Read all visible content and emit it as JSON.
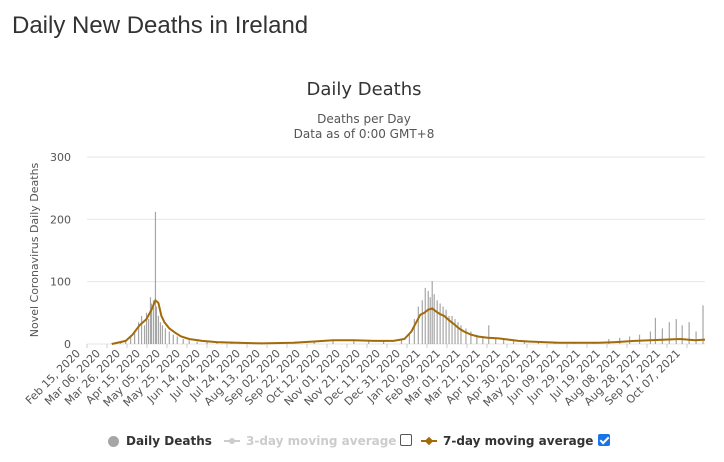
{
  "page": {
    "title": "Daily New Deaths in Ireland"
  },
  "colors": {
    "bars": "#a6a6a6",
    "avg7": "#a36a0a",
    "avg3_disabled": "#cccccc",
    "grid": "#e6e6e6",
    "checkbox": "#1a73e8"
  },
  "chart_data": {
    "type": "bar",
    "title": "Daily Deaths",
    "subtitle_lines": [
      "Deaths per Day",
      "Data as of 0:00 GMT+8"
    ],
    "ylabel": "Novel Coronavirus Daily Deaths",
    "ylim": [
      0,
      300
    ],
    "yticks": [
      "0",
      "100",
      "200",
      "300"
    ],
    "grid": true,
    "legend_position": "bottom",
    "x_start": "2020-02-15",
    "x_end": "2021-10-30",
    "xtick_labels": [
      "Feb 15, 2020",
      "Mar 06, 2020",
      "Mar 26, 2020",
      "Apr 15, 2020",
      "May 05, 2020",
      "May 25, 2020",
      "Jun 14, 2020",
      "Jul 04, 2020",
      "Jul 24, 2020",
      "Aug 13, 2020",
      "Sep 02, 2020",
      "Sep 22, 2020",
      "Oct 12, 2020",
      "Nov 01, 2020",
      "Nov 21, 2020",
      "Dec 11, 2020",
      "Dec 31, 2020",
      "Jan 20, 2021",
      "Feb 09, 2021",
      "Mar 01, 2021",
      "Mar 21, 2021",
      "Apr 10, 2021",
      "Apr 30, 2021",
      "May 20, 2021",
      "Jun 09, 2021",
      "Jun 29, 2021",
      "Jul 19, 2021",
      "Aug 08, 2021",
      "Aug 28, 2021",
      "Sep 17, 2021",
      "Oct 07, 2021"
    ],
    "series": [
      {
        "name": "Daily Deaths",
        "kind": "bar",
        "visible": true,
        "points": [
          [
            "2020-03-11",
            1
          ],
          [
            "2020-03-20",
            3
          ],
          [
            "2020-03-25",
            6
          ],
          [
            "2020-03-30",
            12
          ],
          [
            "2020-04-03",
            20
          ],
          [
            "2020-04-07",
            35
          ],
          [
            "2020-04-10",
            45
          ],
          [
            "2020-04-13",
            30
          ],
          [
            "2020-04-15",
            50
          ],
          [
            "2020-04-17",
            40
          ],
          [
            "2020-04-19",
            75
          ],
          [
            "2020-04-20",
            65
          ],
          [
            "2020-04-22",
            70
          ],
          [
            "2020-04-24",
            212
          ],
          [
            "2020-04-25",
            60
          ],
          [
            "2020-04-27",
            45
          ],
          [
            "2020-04-29",
            35
          ],
          [
            "2020-05-01",
            30
          ],
          [
            "2020-05-04",
            25
          ],
          [
            "2020-05-08",
            20
          ],
          [
            "2020-05-12",
            15
          ],
          [
            "2020-05-16",
            12
          ],
          [
            "2020-05-22",
            8
          ],
          [
            "2020-05-28",
            6
          ],
          [
            "2020-06-05",
            4
          ],
          [
            "2020-06-15",
            3
          ],
          [
            "2020-06-25",
            2
          ],
          [
            "2020-07-10",
            2
          ],
          [
            "2020-08-01",
            1
          ],
          [
            "2020-09-01",
            2
          ],
          [
            "2020-10-01",
            5
          ],
          [
            "2020-10-20",
            6
          ],
          [
            "2020-11-10",
            7
          ],
          [
            "2020-11-25",
            6
          ],
          [
            "2020-12-10",
            5
          ],
          [
            "2020-12-28",
            8
          ],
          [
            "2021-01-05",
            15
          ],
          [
            "2021-01-10",
            40
          ],
          [
            "2021-01-14",
            60
          ],
          [
            "2021-01-18",
            70
          ],
          [
            "2021-01-21",
            90
          ],
          [
            "2021-01-24",
            85
          ],
          [
            "2021-01-26",
            75
          ],
          [
            "2021-01-28",
            101
          ],
          [
            "2021-01-30",
            80
          ],
          [
            "2021-02-02",
            70
          ],
          [
            "2021-02-05",
            65
          ],
          [
            "2021-02-08",
            60
          ],
          [
            "2021-02-11",
            55
          ],
          [
            "2021-02-14",
            45
          ],
          [
            "2021-02-17",
            45
          ],
          [
            "2021-02-20",
            40
          ],
          [
            "2021-02-23",
            35
          ],
          [
            "2021-02-26",
            30
          ],
          [
            "2021-03-03",
            25
          ],
          [
            "2021-03-08",
            20
          ],
          [
            "2021-03-14",
            15
          ],
          [
            "2021-03-20",
            12
          ],
          [
            "2021-03-26",
            30
          ],
          [
            "2021-04-02",
            10
          ],
          [
            "2021-04-10",
            8
          ],
          [
            "2021-04-20",
            6
          ],
          [
            "2021-05-01",
            4
          ],
          [
            "2021-05-15",
            3
          ],
          [
            "2021-06-01",
            2
          ],
          [
            "2021-06-20",
            2
          ],
          [
            "2021-07-10",
            3
          ],
          [
            "2021-07-25",
            8
          ],
          [
            "2021-08-05",
            10
          ],
          [
            "2021-08-15",
            12
          ],
          [
            "2021-08-25",
            15
          ],
          [
            "2021-09-05",
            20
          ],
          [
            "2021-09-10",
            42
          ],
          [
            "2021-09-17",
            25
          ],
          [
            "2021-09-24",
            35
          ],
          [
            "2021-10-01",
            40
          ],
          [
            "2021-10-07",
            30
          ],
          [
            "2021-10-14",
            35
          ],
          [
            "2021-10-21",
            20
          ],
          [
            "2021-10-28",
            62
          ]
        ]
      },
      {
        "name": "3-day moving average",
        "kind": "line",
        "visible": false,
        "points": []
      },
      {
        "name": "7-day moving average",
        "kind": "line",
        "visible": true,
        "points": [
          [
            "2020-03-11",
            0
          ],
          [
            "2020-03-25",
            5
          ],
          [
            "2020-04-01",
            15
          ],
          [
            "2020-04-08",
            30
          ],
          [
            "2020-04-15",
            40
          ],
          [
            "2020-04-20",
            55
          ],
          [
            "2020-04-24",
            70
          ],
          [
            "2020-04-27",
            66
          ],
          [
            "2020-04-30",
            45
          ],
          [
            "2020-05-03",
            35
          ],
          [
            "2020-05-08",
            25
          ],
          [
            "2020-05-14",
            18
          ],
          [
            "2020-05-20",
            12
          ],
          [
            "2020-05-28",
            8
          ],
          [
            "2020-06-10",
            5
          ],
          [
            "2020-06-25",
            3
          ],
          [
            "2020-07-15",
            2
          ],
          [
            "2020-08-10",
            1
          ],
          [
            "2020-09-10",
            2
          ],
          [
            "2020-10-01",
            4
          ],
          [
            "2020-10-20",
            6
          ],
          [
            "2020-11-10",
            6
          ],
          [
            "2020-12-01",
            5
          ],
          [
            "2020-12-20",
            5
          ],
          [
            "2020-12-31",
            8
          ],
          [
            "2021-01-07",
            20
          ],
          [
            "2021-01-12",
            35
          ],
          [
            "2021-01-16",
            47
          ],
          [
            "2021-01-20",
            50
          ],
          [
            "2021-01-24",
            55
          ],
          [
            "2021-01-28",
            57
          ],
          [
            "2021-02-01",
            52
          ],
          [
            "2021-02-05",
            48
          ],
          [
            "2021-02-09",
            45
          ],
          [
            "2021-02-14",
            38
          ],
          [
            "2021-02-19",
            32
          ],
          [
            "2021-02-24",
            25
          ],
          [
            "2021-03-01",
            20
          ],
          [
            "2021-03-08",
            15
          ],
          [
            "2021-03-15",
            12
          ],
          [
            "2021-03-25",
            10
          ],
          [
            "2021-04-05",
            9
          ],
          [
            "2021-04-15",
            7
          ],
          [
            "2021-04-25",
            5
          ],
          [
            "2021-05-05",
            4
          ],
          [
            "2021-05-20",
            3
          ],
          [
            "2021-06-05",
            2
          ],
          [
            "2021-06-25",
            2
          ],
          [
            "2021-07-15",
            2
          ],
          [
            "2021-08-01",
            3
          ],
          [
            "2021-08-20",
            5
          ],
          [
            "2021-09-05",
            6
          ],
          [
            "2021-09-20",
            7
          ],
          [
            "2021-10-05",
            8
          ],
          [
            "2021-10-20",
            6
          ],
          [
            "2021-10-30",
            7
          ]
        ]
      }
    ],
    "legend_controls": [
      {
        "series": "3-day moving average",
        "checked": false
      },
      {
        "series": "7-day moving average",
        "checked": true
      }
    ]
  }
}
